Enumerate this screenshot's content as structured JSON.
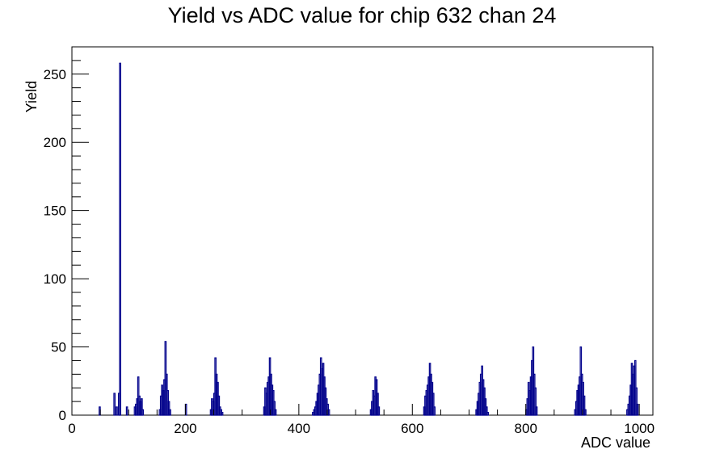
{
  "chart_data": {
    "type": "bar",
    "title": "Yield vs ADC value for chip 632 chan 24",
    "xlabel": "ADC value",
    "ylabel": "Yield",
    "xlim": [
      0,
      1024
    ],
    "ylim": [
      0,
      270
    ],
    "x_ticks": [
      0,
      200,
      400,
      600,
      800,
      1000
    ],
    "y_ticks": [
      0,
      50,
      100,
      150,
      200,
      250
    ],
    "series": [
      {
        "color": "#00008b",
        "bin_width": 2,
        "x": [
          48,
          74,
          78,
          82,
          84,
          96,
          110,
          112,
          114,
          116,
          118,
          120,
          122,
          124,
          154,
          156,
          158,
          160,
          162,
          164,
          166,
          168,
          170,
          172,
          200,
          244,
          246,
          248,
          250,
          252,
          254,
          256,
          258,
          260,
          262,
          264,
          338,
          340,
          342,
          344,
          346,
          348,
          350,
          352,
          354,
          356,
          358,
          424,
          426,
          428,
          430,
          432,
          434,
          436,
          438,
          440,
          442,
          444,
          446,
          448,
          450,
          452,
          526,
          528,
          530,
          532,
          534,
          536,
          538,
          540,
          620,
          622,
          624,
          626,
          628,
          630,
          632,
          634,
          636,
          638,
          712,
          714,
          716,
          718,
          720,
          722,
          724,
          726,
          728,
          730,
          732,
          800,
          802,
          804,
          806,
          808,
          810,
          812,
          814,
          816,
          818,
          886,
          888,
          890,
          892,
          894,
          896,
          898,
          900,
          902,
          904,
          978,
          980,
          982,
          984,
          986,
          988,
          990,
          992,
          994,
          996
        ],
        "values": [
          6,
          16,
          6,
          16,
          258,
          6,
          6,
          8,
          12,
          28,
          14,
          10,
          12,
          4,
          4,
          14,
          22,
          18,
          26,
          54,
          30,
          18,
          10,
          4,
          8,
          4,
          12,
          10,
          16,
          42,
          30,
          24,
          14,
          6,
          4,
          2,
          6,
          20,
          16,
          24,
          28,
          42,
          30,
          22,
          18,
          10,
          4,
          2,
          4,
          6,
          10,
          16,
          22,
          30,
          42,
          34,
          38,
          28,
          20,
          12,
          8,
          4,
          4,
          10,
          18,
          14,
          28,
          26,
          16,
          6,
          6,
          14,
          18,
          22,
          28,
          38,
          30,
          24,
          16,
          6,
          4,
          10,
          16,
          24,
          30,
          36,
          26,
          20,
          12,
          6,
          2,
          4,
          12,
          24,
          18,
          28,
          40,
          50,
          30,
          20,
          6,
          4,
          10,
          18,
          22,
          28,
          50,
          30,
          24,
          14,
          4,
          4,
          8,
          14,
          22,
          38,
          30,
          36,
          40,
          20,
          8
        ]
      }
    ]
  }
}
